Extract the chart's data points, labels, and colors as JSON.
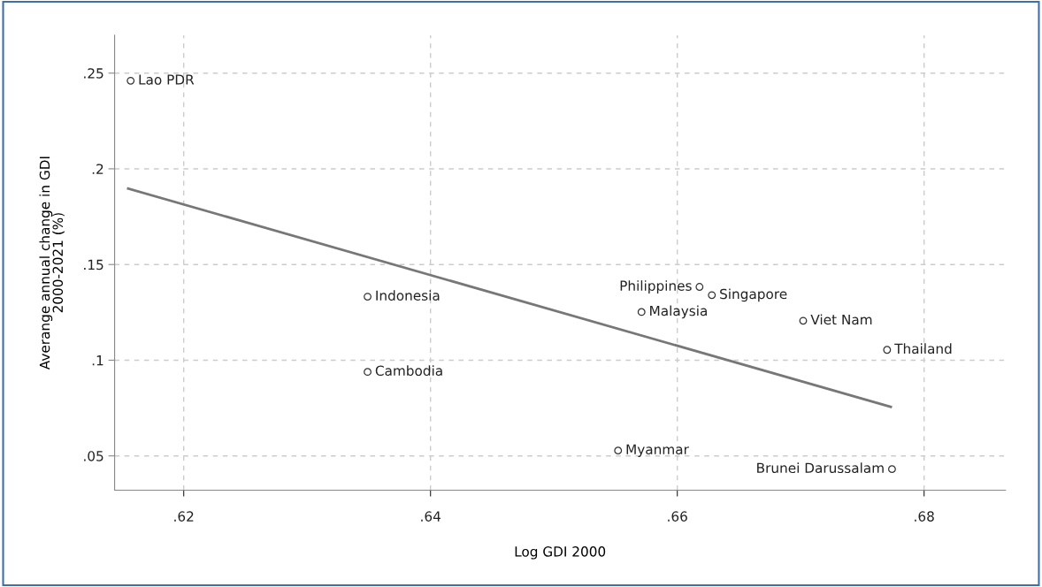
{
  "chart_data": {
    "type": "scatter",
    "xlabel": "Log GDI 2000",
    "ylabel": "Averange annual change in GDI\n2000-2021 (%)",
    "series": [
      {
        "color": "#333333",
        "marker": "circle",
        "x": [
          0.6157,
          0.6349,
          0.6349,
          0.6618,
          0.6628,
          0.6571,
          0.6702,
          0.677,
          0.6552,
          0.6774
        ],
        "values": [
          0.246,
          0.1332,
          0.0939,
          0.1383,
          0.134,
          0.1252,
          0.1206,
          0.1054,
          0.0528,
          0.0431
        ]
      },
      {
        "type": "line",
        "color": "#777777",
        "x": [
          0.6155,
          0.6773
        ],
        "values": [
          0.1897,
          0.0756
        ]
      }
    ],
    "annotations": [
      {
        "text": "Lao PDR",
        "x": 0.6157,
        "y": 0.246
      },
      {
        "text": "Indonesia",
        "x": 0.6349,
        "y": 0.1332
      },
      {
        "text": "Cambodia",
        "x": 0.6349,
        "y": 0.0939
      },
      {
        "text": "Philippines",
        "x": 0.6618,
        "y": 0.1383
      },
      {
        "text": "Singapore",
        "x": 0.6628,
        "y": 0.134
      },
      {
        "text": "Malaysia",
        "x": 0.6571,
        "y": 0.1252
      },
      {
        "text": "Viet Nam",
        "x": 0.6702,
        "y": 0.1206
      },
      {
        "text": "Thailand",
        "x": 0.677,
        "y": 0.1054
      },
      {
        "text": "Myanmar",
        "x": 0.6552,
        "y": 0.0528
      },
      {
        "text": "Brunei Darussalam",
        "x": 0.6774,
        "y": 0.0431
      }
    ],
    "xlim": [
      0.6144,
      0.6866
    ],
    "ylim": [
      0.0321,
      0.2698
    ],
    "xticks": [
      {
        "value": 0.62,
        "label": ".62"
      },
      {
        "value": 0.64,
        "label": ".64"
      },
      {
        "value": 0.66,
        "label": ".66"
      },
      {
        "value": 0.68,
        "label": ".68"
      }
    ],
    "yticks": [
      {
        "value": 0.05,
        "label": ".05"
      },
      {
        "value": 0.1,
        "label": ".1"
      },
      {
        "value": 0.15,
        "label": ".15"
      },
      {
        "value": 0.2,
        "label": ".2"
      },
      {
        "value": 0.25,
        "label": ".25"
      }
    ],
    "grid": true,
    "line_style": "solid"
  }
}
